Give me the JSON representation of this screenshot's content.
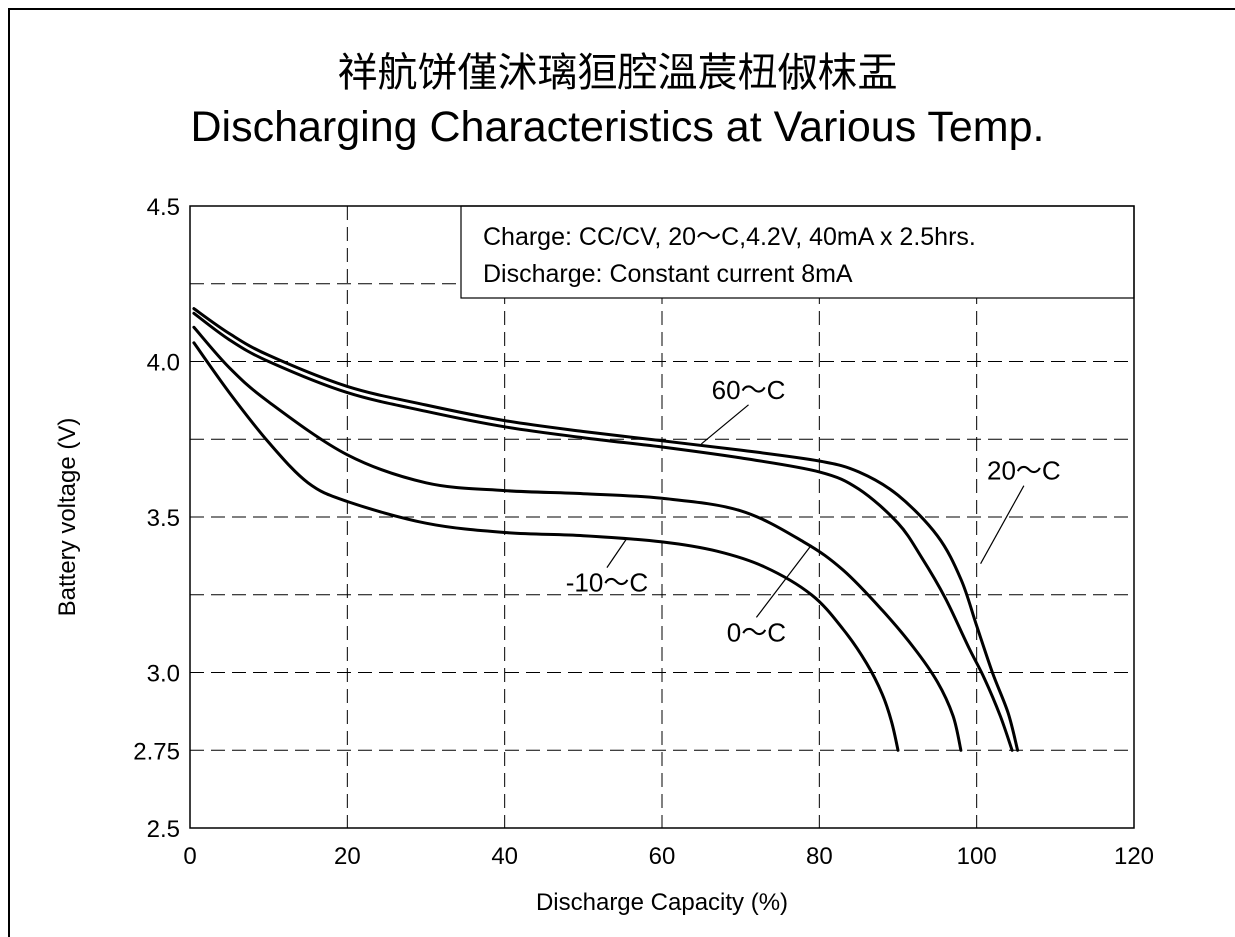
{
  "header": {
    "title_cn": "祥航饼僅沭璃狟腔溫莀杻俶枺盂",
    "title_en": "Discharging Characteristics at Various Temp."
  },
  "chart_data": {
    "type": "line",
    "xlabel": "Discharge Capacity (%)",
    "ylabel": "Battery voltage (V)",
    "xlim": [
      0,
      120
    ],
    "ylim": [
      2.5,
      4.5
    ],
    "x_ticks": [
      0,
      20,
      40,
      60,
      80,
      100,
      120
    ],
    "y_ticks": [
      2.5,
      2.75,
      3.0,
      3.5,
      4.0,
      4.5
    ],
    "y_tick_labels": [
      "2.5",
      "2.75",
      "3.0",
      "3.5",
      "4.0",
      "4.5"
    ],
    "x_gridlines": [
      20,
      40,
      60,
      80,
      100
    ],
    "y_gridlines": [
      2.75,
      3.0,
      3.25,
      3.5,
      3.75,
      4.0,
      4.25
    ],
    "grid": true,
    "grid_style": "dashed",
    "annotation": {
      "lines": [
        "Charge: CC/CV, 20～C,4.2V, 40mA x 2.5hrs.",
        "Discharge: Constant current 8mA"
      ],
      "placement": "top-right"
    },
    "series": [
      {
        "name": "60～C",
        "points": [
          [
            0.5,
            4.17
          ],
          [
            5,
            4.09
          ],
          [
            10,
            4.02
          ],
          [
            20,
            3.92
          ],
          [
            30,
            3.86
          ],
          [
            40,
            3.81
          ],
          [
            50,
            3.775
          ],
          [
            60,
            3.745
          ],
          [
            70,
            3.715
          ],
          [
            80,
            3.68
          ],
          [
            85,
            3.645
          ],
          [
            90,
            3.57
          ],
          [
            95,
            3.44
          ],
          [
            98,
            3.3
          ],
          [
            100,
            3.15
          ],
          [
            102,
            3.0
          ],
          [
            104,
            2.87
          ],
          [
            105.2,
            2.75
          ]
        ]
      },
      {
        "name": "20～C",
        "points": [
          [
            0.5,
            4.155
          ],
          [
            5,
            4.07
          ],
          [
            10,
            4.0
          ],
          [
            20,
            3.9
          ],
          [
            30,
            3.84
          ],
          [
            40,
            3.79
          ],
          [
            50,
            3.755
          ],
          [
            60,
            3.725
          ],
          [
            70,
            3.69
          ],
          [
            80,
            3.645
          ],
          [
            85,
            3.59
          ],
          [
            90,
            3.48
          ],
          [
            93,
            3.37
          ],
          [
            96,
            3.24
          ],
          [
            99,
            3.08
          ],
          [
            101,
            2.98
          ],
          [
            103,
            2.86
          ],
          [
            104.5,
            2.75
          ]
        ]
      },
      {
        "name": "0～C",
        "points": [
          [
            0.5,
            4.11
          ],
          [
            5,
            3.98
          ],
          [
            10,
            3.87
          ],
          [
            20,
            3.7
          ],
          [
            30,
            3.61
          ],
          [
            40,
            3.585
          ],
          [
            50,
            3.575
          ],
          [
            60,
            3.56
          ],
          [
            70,
            3.52
          ],
          [
            78,
            3.42
          ],
          [
            83,
            3.33
          ],
          [
            88,
            3.2
          ],
          [
            92,
            3.08
          ],
          [
            95,
            2.97
          ],
          [
            97,
            2.86
          ],
          [
            98,
            2.75
          ]
        ]
      },
      {
        "name": "-10～C",
        "points": [
          [
            0.5,
            4.06
          ],
          [
            5,
            3.9
          ],
          [
            10,
            3.74
          ],
          [
            15,
            3.61
          ],
          [
            20,
            3.55
          ],
          [
            30,
            3.48
          ],
          [
            40,
            3.45
          ],
          [
            50,
            3.44
          ],
          [
            60,
            3.42
          ],
          [
            67,
            3.39
          ],
          [
            73,
            3.34
          ],
          [
            79,
            3.25
          ],
          [
            83,
            3.14
          ],
          [
            86,
            3.03
          ],
          [
            88,
            2.93
          ],
          [
            89.2,
            2.84
          ],
          [
            90,
            2.75
          ]
        ]
      }
    ],
    "series_labels": [
      {
        "text": "60～C",
        "at": [
          71,
          3.88
        ],
        "leader_to": [
          65,
          3.735
        ]
      },
      {
        "text": "20～C",
        "at": [
          106,
          3.62
        ],
        "leader_to": [
          100.5,
          3.35
        ]
      },
      {
        "text": "0～C",
        "at": [
          72,
          3.1
        ],
        "leader_to": [
          79,
          3.41
        ]
      },
      {
        "text": "-10～C",
        "at": [
          53,
          3.26
        ],
        "leader_to": [
          55.5,
          3.43
        ]
      }
    ]
  }
}
